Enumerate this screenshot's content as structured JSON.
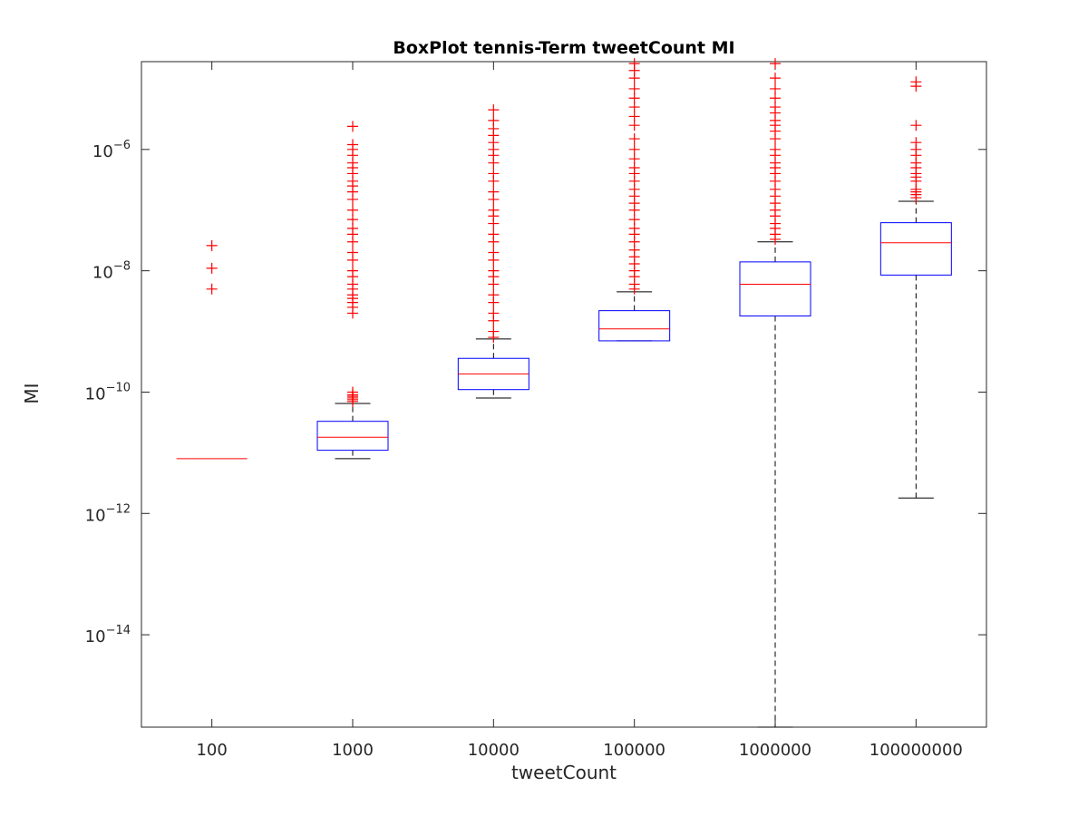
{
  "chart_data": {
    "type": "boxplot",
    "title": "BoxPlot tennis-Term tweetCount MI",
    "xlabel": "tweetCount",
    "ylabel": "MI",
    "yscale": "log",
    "ylim": [
      3e-16,
      2.8e-05
    ],
    "y_ticks": [
      {
        "value": 1e-14,
        "base": "10",
        "exp": "−14"
      },
      {
        "value": 1e-12,
        "base": "10",
        "exp": "−12"
      },
      {
        "value": 1e-10,
        "base": "10",
        "exp": "−10"
      },
      {
        "value": 1e-08,
        "base": "10",
        "exp": "−8"
      },
      {
        "value": 1e-06,
        "base": "10",
        "exp": "−6"
      }
    ],
    "categories": [
      "100",
      "1000",
      "10000",
      "100000",
      "1000000",
      "100000000"
    ],
    "boxes": [
      {
        "category": "100",
        "whisker_low": 8e-12,
        "q1": 8e-12,
        "median": 8e-12,
        "q3": 8e-12,
        "whisker_high": 8e-12,
        "outliers": [
          5e-09,
          1.1e-08,
          2.6e-08
        ]
      },
      {
        "category": "1000",
        "whisker_low": 8e-12,
        "q1": 1.1e-11,
        "median": 1.8e-11,
        "q3": 3.3e-11,
        "whisker_high": 6.5e-11,
        "outliers": [
          7e-11,
          7.5e-11,
          8e-11,
          8.5e-11,
          9e-11,
          1e-10,
          2e-09,
          2.5e-09,
          3e-09,
          3.5e-09,
          4e-09,
          5e-09,
          6e-09,
          8e-09,
          1e-08,
          1.5e-08,
          2e-08,
          3e-08,
          4e-08,
          5e-08,
          7e-08,
          1e-07,
          1.5e-07,
          2e-07,
          2.5e-07,
          3e-07,
          4e-07,
          5e-07,
          6e-07,
          8e-07,
          1e-06,
          1.2e-06,
          2.4e-06
        ]
      },
      {
        "category": "10000",
        "whisker_low": 8e-11,
        "q1": 1.1e-10,
        "median": 2e-10,
        "q3": 3.6e-10,
        "whisker_high": 7.5e-10,
        "outliers": [
          8e-10,
          1e-09,
          1.5e-09,
          2e-09,
          3e-09,
          4e-09,
          6e-09,
          8e-09,
          1e-08,
          1.5e-08,
          2e-08,
          3e-08,
          4e-08,
          6e-08,
          8e-08,
          1e-07,
          1.5e-07,
          2e-07,
          3e-07,
          4e-07,
          6e-07,
          8e-07,
          1e-06,
          1.3e-06,
          1.7e-06,
          2.2e-06,
          3e-06,
          4.5e-06
        ]
      },
      {
        "category": "100000",
        "whisker_low": 7e-10,
        "q1": 7e-10,
        "median": 1.1e-09,
        "q3": 2.2e-09,
        "whisker_high": 4.5e-09,
        "outliers": [
          5e-09,
          6e-09,
          8e-09,
          1e-08,
          1.3e-08,
          1.7e-08,
          2.2e-08,
          3e-08,
          4e-08,
          5e-08,
          7e-08,
          1e-07,
          1.3e-07,
          1.7e-07,
          2.2e-07,
          3e-07,
          4e-07,
          5e-07,
          7e-07,
          1e-06,
          1.5e-06,
          2.5e-06,
          3.5e-06,
          5e-06,
          7e-06,
          1e-05,
          1.5e-05,
          2e-05,
          2.6e-05
        ]
      },
      {
        "category": "1000000",
        "whisker_low": 3e-16,
        "q1": 1.8e-09,
        "median": 6e-09,
        "q3": 1.4e-08,
        "whisker_high": 3e-08,
        "outliers": [
          3.3e-08,
          4e-08,
          5e-08,
          6e-08,
          8e-08,
          1e-07,
          1.3e-07,
          1.7e-07,
          2.2e-07,
          3e-07,
          4e-07,
          5e-07,
          6e-07,
          8e-07,
          1e-06,
          1.5e-06,
          2e-06,
          2.5e-06,
          3e-06,
          4e-06,
          5e-06,
          7e-06,
          1e-05,
          1.5e-05,
          2.6e-05
        ]
      },
      {
        "category": "100000000",
        "whisker_low": 1.8e-12,
        "q1": 8.5e-09,
        "median": 2.9e-08,
        "q3": 6.2e-08,
        "whisker_high": 1.4e-07,
        "outliers": [
          1.6e-07,
          1.8e-07,
          2e-07,
          2.2e-07,
          3e-07,
          3.5e-07,
          4e-07,
          5e-07,
          6e-07,
          8e-07,
          1e-06,
          1.3e-06,
          2.5e-06,
          1.1e-05,
          1.3e-05
        ]
      }
    ],
    "grid": false,
    "colors": {
      "box": "#0000ff",
      "median": "#ff0000",
      "whisker": "#000000",
      "outlier": "#ff0000",
      "axis": "#262626"
    }
  }
}
